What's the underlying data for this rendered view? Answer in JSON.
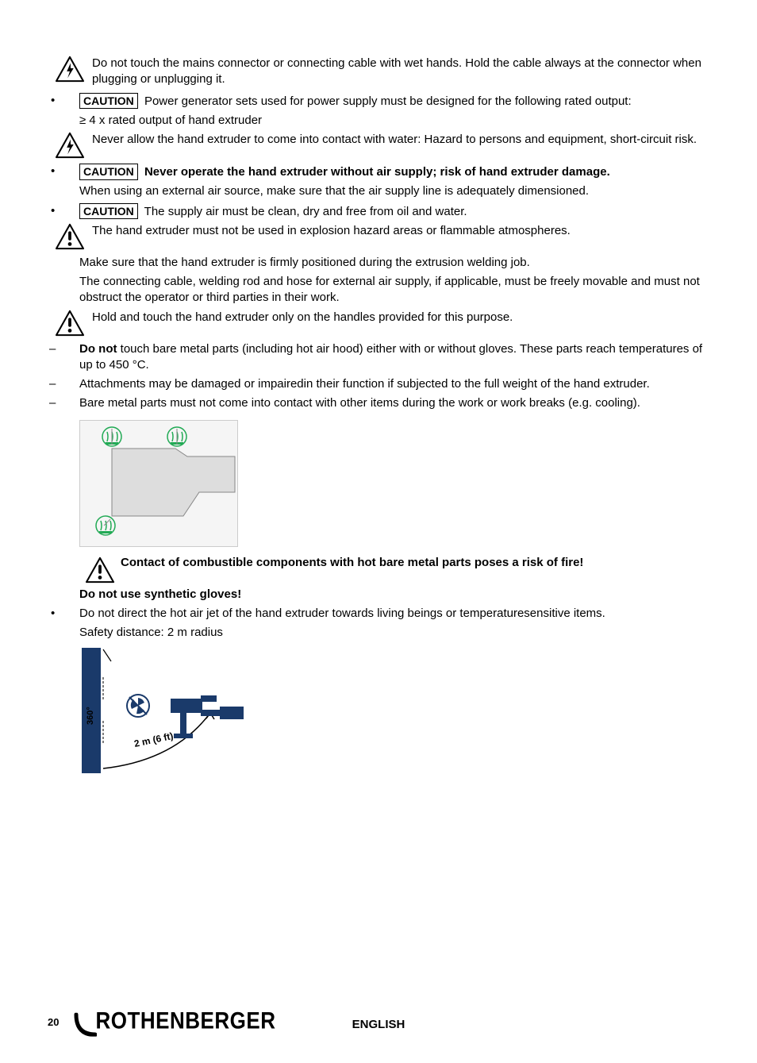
{
  "items": [
    {
      "type": "icon-text",
      "icon": "shock",
      "text": "Do not touch the mains connector or connecting cable with wet hands. Hold the cable always at the connector when plugging or unplugging it."
    },
    {
      "type": "bullet-caution",
      "text": "Power generator sets used for power supply must be designed for the following rated output:"
    },
    {
      "type": "indent",
      "text": "≥ 4 x rated output of hand extruder"
    },
    {
      "type": "icon-text",
      "icon": "shock",
      "text": "Never allow the hand extruder to come into contact with water: Hazard to persons and equipment, short-circuit risk."
    },
    {
      "type": "bullet-caution-bold",
      "text": "Never operate the hand extruder without air supply; risk of hand extruder damage."
    },
    {
      "type": "indent",
      "text": "When using an external air source, make sure that the air supply line is adequately dimensioned."
    },
    {
      "type": "bullet-caution",
      "text": "The supply air must be clean, dry and free from oil and water."
    },
    {
      "type": "icon-text",
      "icon": "warn",
      "text": "The hand extruder must not be used in explosion hazard areas or flammable atmospheres."
    },
    {
      "type": "indent",
      "text": "Make sure that the hand extruder is firmly positioned during the extrusion welding job."
    },
    {
      "type": "indent",
      "text": "The connecting cable, welding rod and hose for external air supply, if applicable, must be freely movable and must not obstruct the operator or third parties in their work."
    },
    {
      "type": "icon-text",
      "icon": "warn",
      "text": "Hold and touch the hand extruder only on the handles provided for this purpose."
    },
    {
      "type": "dash-donot",
      "pre": "Do not",
      "text": " touch bare metal parts (including hot air hood) either with or without gloves. These parts reach temperatures of up to 450 °C."
    },
    {
      "type": "dash",
      "text": "Attachments may be damaged or impairedin their function if subjected to the full weight of the hand extruder."
    },
    {
      "type": "dash",
      "text": "Bare metal parts must not come into contact with other items during the work or work breaks (e.g. cooling)."
    }
  ],
  "fire_warning": "Contact of combustible components with hot bare metal parts poses a risk of fire!",
  "synthetic": "Do not use synthetic gloves!",
  "hotair": "Do not direct the hot air jet of the hand extruder towards living beings or temperaturesensitive items.",
  "safety_dist": "Safety distance: 2 m radius",
  "diagram_labels": {
    "angle": "360°",
    "dist": "2 m (6 ft)"
  },
  "page": "20",
  "brand": "ROTHENBERGER",
  "lang": "ENGLISH"
}
